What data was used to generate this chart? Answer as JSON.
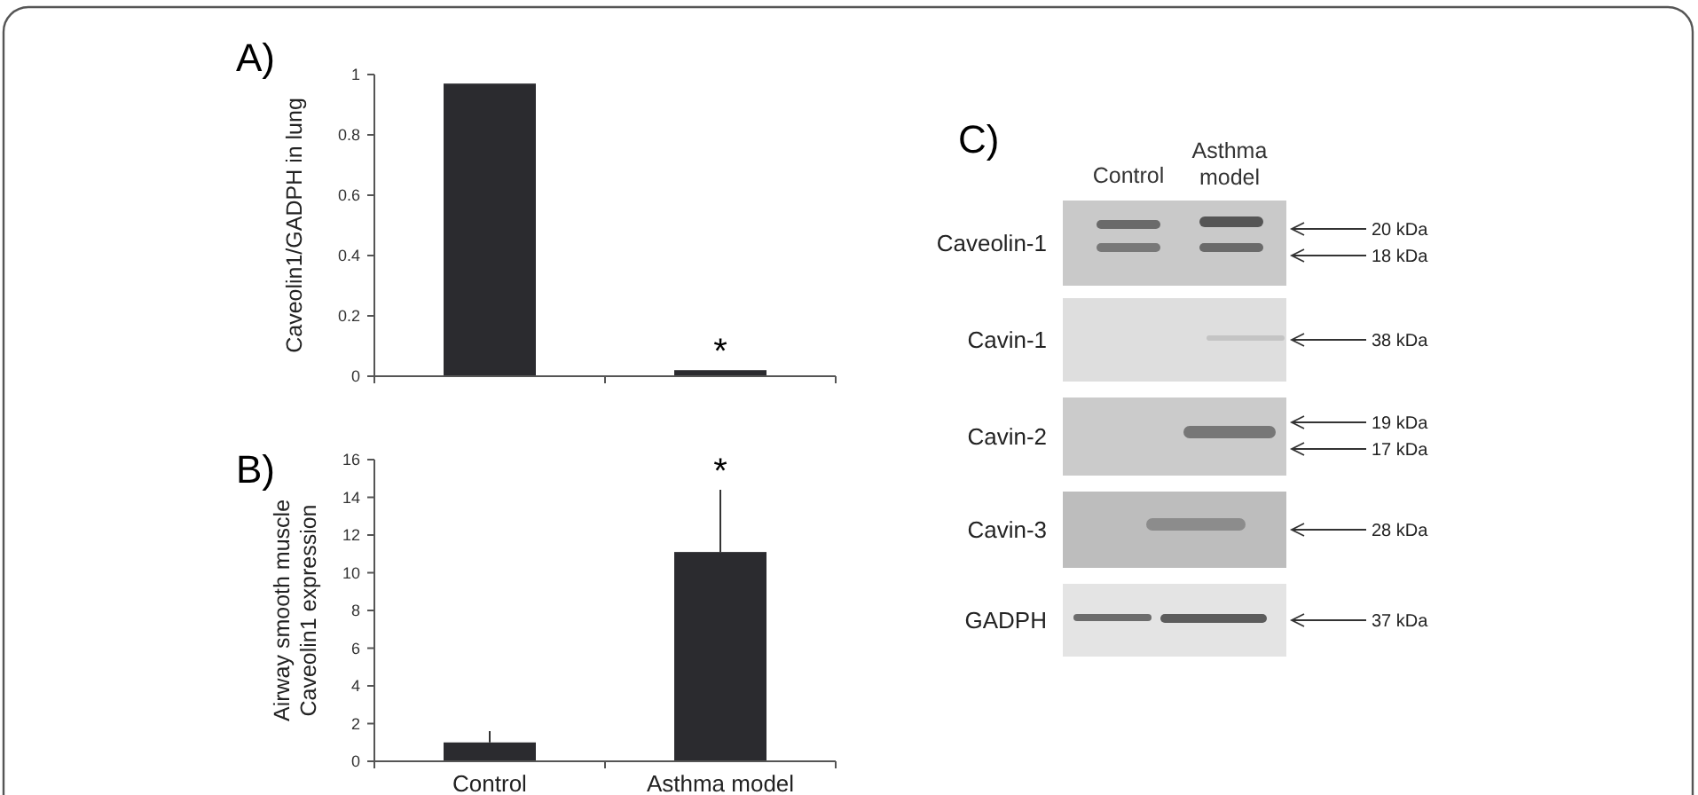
{
  "chart_data": [
    {
      "type": "bar",
      "title": "A)",
      "ylabel": "Caveolin1/GADPH in lung",
      "categories": [
        "Control",
        "Asthma model"
      ],
      "values": [
        0.97,
        0.02
      ],
      "color": "#2b2b2f",
      "ylim": [
        0,
        1
      ],
      "yticks": [
        0,
        0.2,
        0.4,
        0.6,
        0.8,
        1
      ],
      "tick_labels": "y",
      "annotations": [
        {
          "text": "*",
          "x": "Asthma model",
          "y": 0.02
        }
      ]
    },
    {
      "type": "bar",
      "title": "B)",
      "ylabel": "Airway smooth muscle Caveolin1 expression",
      "categories": [
        "Control",
        "Asthma model"
      ],
      "values": [
        1.0,
        11.1
      ],
      "errors": [
        [
          1.0,
          1.6
        ],
        [
          11.1,
          14.4
        ]
      ],
      "color": "#2b2b2f",
      "ylim": [
        0,
        16
      ],
      "yticks": [
        0,
        2,
        4,
        6,
        8,
        10,
        12,
        14,
        16
      ],
      "annotations": [
        {
          "text": "*",
          "x": "Asthma model",
          "y": 14.4
        }
      ]
    },
    {
      "type": "other",
      "title": "C)",
      "categories": [
        "Control",
        "Asthma model"
      ],
      "y_categories": [
        "Caveolin-1",
        "Cavin-1",
        "Cavin-2",
        "Cavin-3",
        "GADPH"
      ],
      "annotations": [
        "20 kDa",
        "18 kDa",
        "38 kDa",
        "19 kDa",
        "17 kDa",
        "28 kDa",
        "37 kDa"
      ]
    }
  ]
}
